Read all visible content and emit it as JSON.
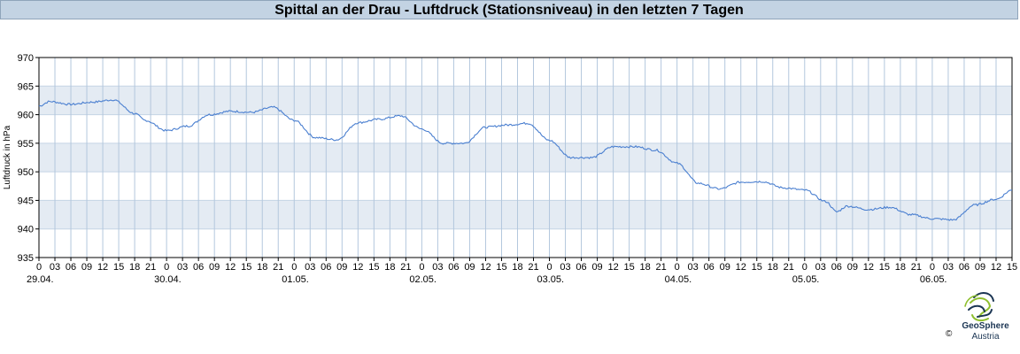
{
  "title": "Spittal an der Drau - Luftdruck (Stationsniveau) in den letzten 7 Tagen",
  "logo": {
    "name": "GeoSphere",
    "sub": "Austria",
    "copyright": "©"
  },
  "chart_data": {
    "type": "line",
    "title": "Spittal an der Drau - Luftdruck (Stationsniveau) in den letzten 7 Tagen",
    "ylabel": "Luftdruck in hPa",
    "xlabel": "",
    "ylim": [
      935,
      970
    ],
    "yticks": [
      935,
      940,
      945,
      950,
      955,
      960,
      965,
      970
    ],
    "x_unit": "hours since 29.04. 00:00",
    "xlim": [
      0,
      183
    ],
    "x_tick_step_hours": 3,
    "hour_labels": [
      "0",
      "03",
      "06",
      "09",
      "12",
      "15",
      "18",
      "21"
    ],
    "day_labels": [
      "29.04.",
      "30.04.",
      "01.05.",
      "02.05.",
      "03.05.",
      "04.05.",
      "05.05.",
      "06.05."
    ],
    "grid": true,
    "color": "#4a7fd0",
    "series": [
      {
        "x": [
          0,
          2,
          6,
          10,
          14,
          18,
          20,
          24,
          28,
          32,
          36,
          40,
          44,
          48,
          52,
          56,
          60,
          64,
          68,
          72,
          76,
          80,
          84,
          88,
          92,
          96,
          100,
          104,
          108,
          112,
          116,
          120,
          124,
          128,
          132,
          136,
          140,
          144,
          148,
          150,
          152,
          156,
          160,
          164,
          168,
          172,
          176,
          180,
          183
        ],
        "values": [
          961.5,
          962.3,
          961.8,
          962.2,
          962.6,
          960.2,
          959.0,
          957.2,
          958.0,
          960.0,
          960.6,
          960.4,
          961.3,
          959.0,
          956.0,
          955.6,
          958.6,
          959.2,
          959.8,
          957.5,
          955.0,
          955.0,
          957.8,
          958.2,
          958.5,
          955.5,
          952.5,
          952.5,
          954.4,
          954.4,
          953.8,
          951.5,
          948.0,
          947.0,
          948.2,
          948.3,
          947.2,
          946.8,
          944.8,
          943.0,
          944.0,
          943.4,
          943.8,
          942.5,
          941.8,
          941.6,
          944.2,
          945.2,
          946.8
        ]
      }
    ]
  }
}
